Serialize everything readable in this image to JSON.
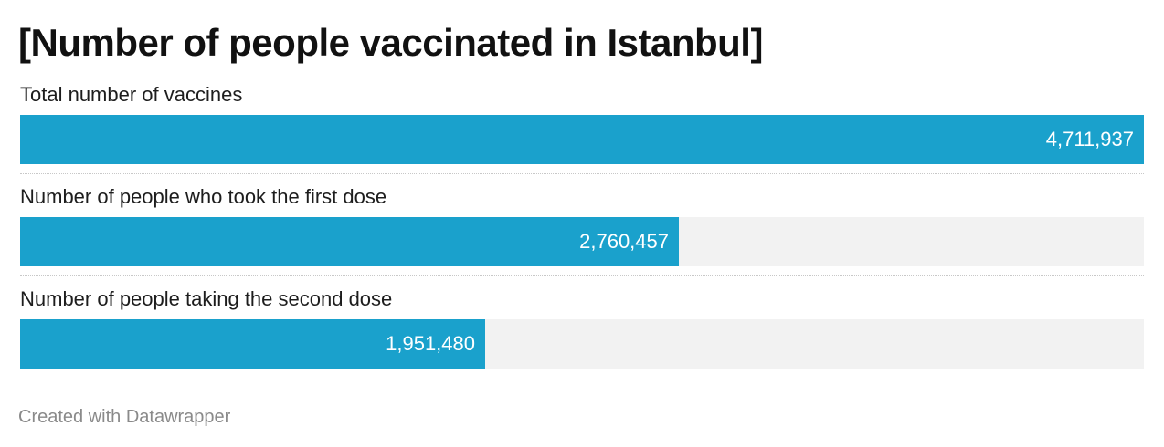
{
  "title": "[Number of people vaccinated in Istanbul]",
  "footer": "Created with Datawrapper",
  "colors": {
    "bar": "#1aa1cc",
    "track": "#f2f2f2",
    "value_text": "#ffffff"
  },
  "chart_data": {
    "type": "bar",
    "orientation": "horizontal",
    "title": "[Number of people vaccinated in Istanbul]",
    "categories": [
      "Total number of vaccines",
      "Number of people who took the first dose",
      "Number of people taking the second dose"
    ],
    "values": [
      4711937,
      2760457,
      1951480
    ],
    "value_labels": [
      "4,711,937",
      "2,760,457",
      "1,951,480"
    ],
    "xlim": [
      0,
      4711937
    ],
    "grid": false,
    "legend": "none"
  }
}
